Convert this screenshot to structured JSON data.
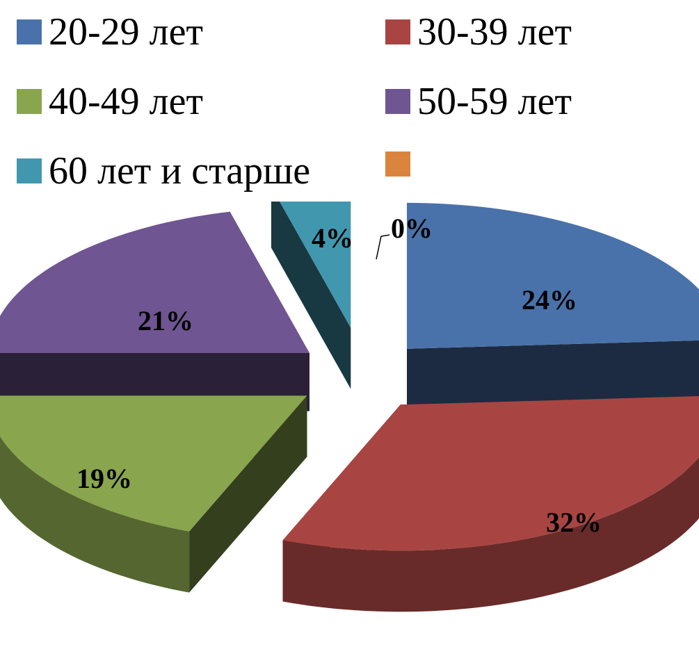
{
  "chart_data": {
    "type": "pie",
    "title": "",
    "legend_position": "top",
    "categories": [
      "20-29 лет",
      "30-39 лет",
      "40-49 лет",
      "50-59 лет",
      "60 лет и старше",
      ""
    ],
    "values": [
      24,
      32,
      19,
      21,
      4,
      0
    ],
    "value_labels": [
      "24%",
      "32%",
      "19%",
      "21%",
      "4%",
      "0%"
    ],
    "colors": [
      "#4a72aa",
      "#a84542",
      "#89a54e",
      "#6f5592",
      "#4197ae",
      "#db843d"
    ],
    "style": "3d-exploded"
  }
}
